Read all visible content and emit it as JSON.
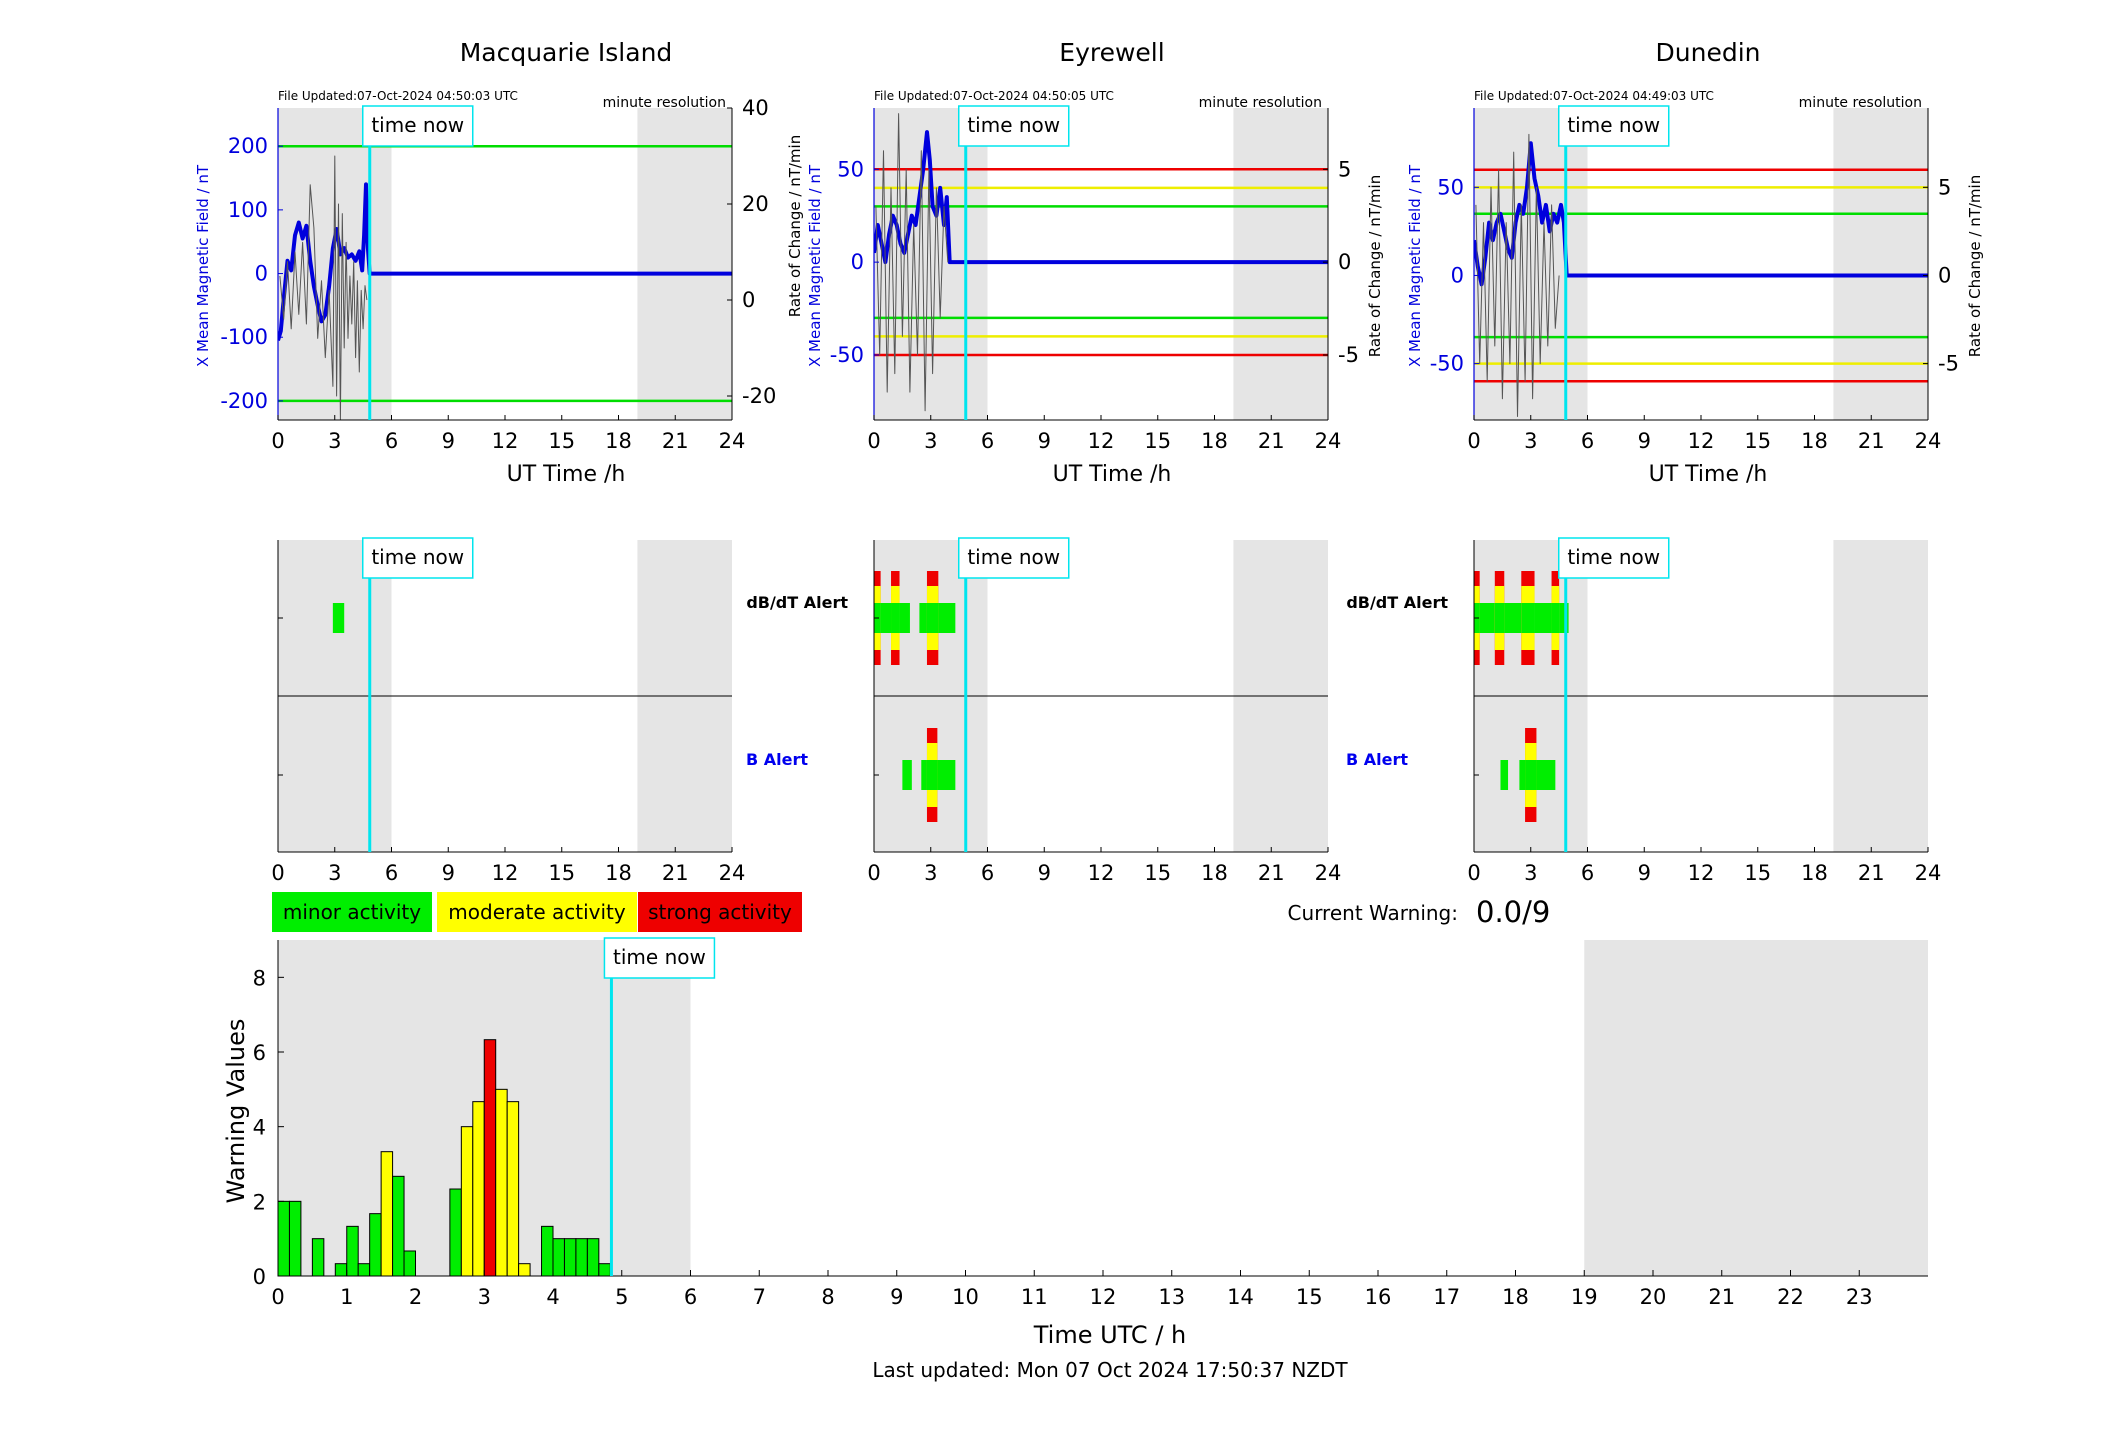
{
  "chart_data": [
    {
      "type": "line",
      "title": "Macquarie Island",
      "file_updated": "File Updated:07-Oct-2024 04:50:03 UTC",
      "resolution_label": "minute resolution",
      "xlabel": "UT Time /h",
      "ylabel": "X Mean Magnetic Field / nT",
      "y2label": "Rate of Change / nT/min",
      "xlim": [
        0,
        24
      ],
      "ylim": [
        -230,
        260
      ],
      "y2lim": [
        -25,
        40
      ],
      "xticks": [
        0,
        3,
        6,
        9,
        12,
        15,
        18,
        21,
        24
      ],
      "yticks": [
        -200,
        -100,
        0,
        100,
        200
      ],
      "y2ticks": [
        -20,
        0,
        20,
        40
      ],
      "time_now": 4.85,
      "time_now_label": "time now",
      "shaded_ranges": [
        [
          0,
          6
        ],
        [
          19,
          24
        ]
      ],
      "threshold_lines": [
        {
          "y": 200,
          "color": "#00dd00"
        },
        {
          "y": -200,
          "color": "#00dd00"
        }
      ],
      "series": [
        {
          "role": "field",
          "color": "#0000dd",
          "x": [
            0,
            0.15,
            0.3,
            0.5,
            0.7,
            0.9,
            1.1,
            1.3,
            1.5,
            1.7,
            1.9,
            2.1,
            2.3,
            2.5,
            2.7,
            2.9,
            3.1,
            3.3,
            3.5,
            3.7,
            3.9,
            4.1,
            4.3,
            4.45,
            4.55,
            4.65,
            4.75,
            4.85,
            24
          ],
          "y": [
            -105,
            -90,
            -40,
            20,
            5,
            60,
            80,
            55,
            75,
            20,
            -20,
            -50,
            -75,
            -65,
            -20,
            40,
            70,
            30,
            40,
            25,
            30,
            20,
            35,
            5,
            60,
            140,
            40,
            0,
            0
          ]
        },
        {
          "role": "rate",
          "color": "#555555",
          "x": [
            0.1,
            0.3,
            0.5,
            0.7,
            0.9,
            1.1,
            1.3,
            1.5,
            1.7,
            1.9,
            2.1,
            2.3,
            2.5,
            2.7,
            2.9,
            3.0,
            3.1,
            3.2,
            3.3,
            3.4,
            3.5,
            3.6,
            3.7,
            3.8,
            3.9,
            4.0,
            4.1,
            4.2,
            4.3,
            4.4,
            4.5,
            4.6,
            4.7
          ],
          "y": [
            5,
            -4,
            8,
            -6,
            10,
            -3,
            12,
            -5,
            24,
            15,
            -8,
            4,
            -12,
            2,
            -18,
            30,
            -20,
            20,
            -25,
            18,
            -10,
            12,
            -8,
            5,
            -5,
            8,
            -12,
            4,
            -15,
            2,
            -6,
            3,
            0
          ]
        }
      ]
    },
    {
      "type": "line",
      "title": "Eyrewell",
      "file_updated": "File Updated:07-Oct-2024 04:50:05 UTC",
      "resolution_label": "minute resolution",
      "xlabel": "UT Time /h",
      "ylabel": "X Mean Magnetic Field / nT",
      "y2label": "Rate of Change / nT/min",
      "xlim": [
        0,
        24
      ],
      "ylim": [
        -85,
        83
      ],
      "y2lim": [
        -8.5,
        8.3
      ],
      "xticks": [
        0,
        3,
        6,
        9,
        12,
        15,
        18,
        21,
        24
      ],
      "yticks": [
        -50,
        0,
        50
      ],
      "y2ticks": [
        -5,
        0,
        5
      ],
      "time_now": 4.85,
      "time_now_label": "time now",
      "shaded_ranges": [
        [
          0,
          6
        ],
        [
          19,
          24
        ]
      ],
      "threshold_lines": [
        {
          "y": 50,
          "color": "#ee0000"
        },
        {
          "y": 40,
          "color": "#eeee00"
        },
        {
          "y": 30,
          "color": "#00dd00"
        },
        {
          "y": -30,
          "color": "#00dd00"
        },
        {
          "y": -40,
          "color": "#eeee00"
        },
        {
          "y": -50,
          "color": "#ee0000"
        }
      ],
      "series": [
        {
          "role": "field",
          "color": "#0000dd",
          "x": [
            0,
            0.2,
            0.4,
            0.6,
            0.8,
            1.0,
            1.2,
            1.4,
            1.6,
            1.8,
            2.0,
            2.2,
            2.4,
            2.6,
            2.8,
            2.95,
            3.1,
            3.3,
            3.5,
            3.7,
            3.85,
            4.0,
            24
          ],
          "y": [
            5,
            20,
            10,
            0,
            15,
            25,
            20,
            10,
            5,
            15,
            25,
            20,
            35,
            50,
            70,
            55,
            30,
            25,
            40,
            20,
            35,
            0,
            0
          ]
        },
        {
          "role": "rate",
          "color": "#555555",
          "x": [
            0.1,
            0.3,
            0.5,
            0.7,
            0.9,
            1.1,
            1.3,
            1.5,
            1.7,
            1.9,
            2.1,
            2.3,
            2.5,
            2.7,
            2.9,
            3.1,
            3.3,
            3.5,
            3.7,
            3.9
          ],
          "y": [
            3,
            -5,
            6,
            -7,
            4,
            -6,
            8,
            -4,
            5,
            -7,
            2,
            -5,
            6,
            -8,
            5,
            -6,
            4,
            -3,
            3,
            0
          ]
        }
      ]
    },
    {
      "type": "line",
      "title": "Dunedin",
      "file_updated": "File Updated:07-Oct-2024 04:49:03 UTC",
      "resolution_label": "minute resolution",
      "xlabel": "UT Time /h",
      "ylabel": "X Mean Magnetic Field / nT",
      "y2label": "Rate of Change / nT/min",
      "xlim": [
        0,
        24
      ],
      "ylim": [
        -82,
        95
      ],
      "y2lim": [
        -8.2,
        9.5
      ],
      "xticks": [
        0,
        3,
        6,
        9,
        12,
        15,
        18,
        21,
        24
      ],
      "yticks": [
        -50,
        0,
        50
      ],
      "y2ticks": [
        -5,
        0,
        5
      ],
      "time_now": 4.85,
      "time_now_label": "time now",
      "shaded_ranges": [
        [
          0,
          6
        ],
        [
          19,
          24
        ]
      ],
      "threshold_lines": [
        {
          "y": 60,
          "color": "#ee0000"
        },
        {
          "y": 50,
          "color": "#eeee00"
        },
        {
          "y": 35,
          "color": "#00dd00"
        },
        {
          "y": -35,
          "color": "#00dd00"
        },
        {
          "y": -50,
          "color": "#eeee00"
        },
        {
          "y": -60,
          "color": "#ee0000"
        }
      ],
      "series": [
        {
          "role": "field",
          "color": "#0000dd",
          "x": [
            0,
            0.2,
            0.4,
            0.6,
            0.8,
            1.0,
            1.2,
            1.4,
            1.6,
            1.8,
            2.0,
            2.2,
            2.4,
            2.6,
            2.8,
            3.0,
            3.2,
            3.4,
            3.6,
            3.8,
            4.0,
            4.2,
            4.4,
            4.6,
            4.75,
            4.9,
            24
          ],
          "y": [
            20,
            5,
            -5,
            10,
            30,
            20,
            30,
            35,
            25,
            15,
            10,
            30,
            40,
            35,
            50,
            75,
            55,
            45,
            30,
            40,
            25,
            35,
            30,
            40,
            30,
            0,
            0
          ]
        },
        {
          "role": "rate",
          "color": "#555555",
          "x": [
            0.1,
            0.3,
            0.5,
            0.7,
            0.9,
            1.1,
            1.3,
            1.5,
            1.7,
            1.9,
            2.1,
            2.3,
            2.5,
            2.7,
            2.9,
            3.1,
            3.3,
            3.5,
            3.7,
            3.9,
            4.1,
            4.3,
            4.5
          ],
          "y": [
            4,
            -5,
            3,
            -6,
            5,
            -4,
            6,
            -7,
            3,
            -5,
            7,
            -8,
            4,
            -6,
            8,
            -7,
            5,
            -5,
            3,
            -4,
            4,
            -3,
            0
          ]
        }
      ]
    },
    {
      "type": "heatmap",
      "title": "Macquarie Island alerts",
      "row_labels": [
        "dB/dT Alert",
        "B Alert"
      ],
      "xlim": [
        0,
        24
      ],
      "xticks": [
        0,
        3,
        6,
        9,
        12,
        15,
        18,
        21,
        24
      ],
      "time_now": 4.85,
      "time_now_label": "time now",
      "shaded_ranges": [
        [
          0,
          6
        ],
        [
          19,
          24
        ]
      ],
      "dbdt_blocks": [
        {
          "x0": 2.9,
          "x1": 3.5,
          "level": 1
        }
      ],
      "b_blocks": []
    },
    {
      "type": "heatmap",
      "title": "Eyrewell alerts",
      "row_labels": [
        "dB/dT Alert",
        "B Alert"
      ],
      "xlim": [
        0,
        24
      ],
      "xticks": [
        0,
        3,
        6,
        9,
        12,
        15,
        18,
        21,
        24
      ],
      "time_now": 4.85,
      "time_now_label": "time now",
      "shaded_ranges": [
        [
          0,
          6
        ],
        [
          19,
          24
        ]
      ],
      "dbdt_blocks": [
        {
          "x0": 0.0,
          "x1": 0.35,
          "level": 3
        },
        {
          "x0": 0.35,
          "x1": 0.9,
          "level": 1
        },
        {
          "x0": 0.9,
          "x1": 1.35,
          "level": 3
        },
        {
          "x0": 1.35,
          "x1": 1.9,
          "level": 1
        },
        {
          "x0": 2.4,
          "x1": 2.8,
          "level": 1
        },
        {
          "x0": 2.8,
          "x1": 3.4,
          "level": 3
        },
        {
          "x0": 3.4,
          "x1": 4.3,
          "level": 1
        }
      ],
      "b_blocks": [
        {
          "x0": 1.5,
          "x1": 2.0,
          "level": 1
        },
        {
          "x0": 2.5,
          "x1": 2.8,
          "level": 1
        },
        {
          "x0": 2.8,
          "x1": 3.35,
          "level": 3
        },
        {
          "x0": 3.35,
          "x1": 4.3,
          "level": 1
        }
      ]
    },
    {
      "type": "heatmap",
      "title": "Dunedin alerts",
      "row_labels": [
        "dB/dT Alert",
        "B Alert"
      ],
      "xlim": [
        0,
        24
      ],
      "xticks": [
        0,
        3,
        6,
        9,
        12,
        15,
        18,
        21,
        24
      ],
      "time_now": 4.85,
      "time_now_label": "time now",
      "shaded_ranges": [
        [
          0,
          6
        ],
        [
          19,
          24
        ]
      ],
      "dbdt_blocks": [
        {
          "x0": 0.0,
          "x1": 0.3,
          "level": 3
        },
        {
          "x0": 0.3,
          "x1": 1.1,
          "level": 1
        },
        {
          "x0": 1.1,
          "x1": 1.6,
          "level": 3
        },
        {
          "x0": 1.6,
          "x1": 2.5,
          "level": 1
        },
        {
          "x0": 2.5,
          "x1": 3.2,
          "level": 3
        },
        {
          "x0": 3.2,
          "x1": 4.1,
          "level": 1
        },
        {
          "x0": 4.1,
          "x1": 4.5,
          "level": 3
        },
        {
          "x0": 4.5,
          "x1": 5.0,
          "level": 1
        }
      ],
      "b_blocks": [
        {
          "x0": 1.4,
          "x1": 1.8,
          "level": 1
        },
        {
          "x0": 2.4,
          "x1": 2.7,
          "level": 1
        },
        {
          "x0": 2.7,
          "x1": 3.3,
          "level": 3
        },
        {
          "x0": 3.3,
          "x1": 4.3,
          "level": 1
        }
      ]
    },
    {
      "type": "bar",
      "title": "",
      "xlabel": "Time UTC / h",
      "ylabel": "Warning Values",
      "xlim": [
        0,
        24
      ],
      "ylim": [
        0,
        9
      ],
      "xticks": [
        0,
        1,
        2,
        3,
        4,
        5,
        6,
        7,
        8,
        9,
        10,
        11,
        12,
        13,
        14,
        15,
        16,
        17,
        18,
        19,
        20,
        21,
        22,
        23
      ],
      "yticks": [
        0,
        2,
        4,
        6,
        8
      ],
      "time_now": 4.85,
      "time_now_label": "time now",
      "shaded_ranges": [
        [
          0,
          6
        ],
        [
          19,
          24
        ]
      ],
      "bar_width_h": 0.1667,
      "x": [
        0.0833,
        0.25,
        0.5833,
        0.9167,
        1.0833,
        1.25,
        1.4167,
        1.5833,
        1.75,
        1.9167,
        2.5833,
        2.75,
        2.9167,
        3.0833,
        3.25,
        3.4167,
        3.5833,
        3.9167,
        4.0833,
        4.25,
        4.4167,
        4.5833,
        4.75
      ],
      "values": [
        2,
        2,
        1,
        0.33,
        1.33,
        0.33,
        1.67,
        3.33,
        2.67,
        0.67,
        2.33,
        4,
        4.67,
        6.33,
        5,
        4.67,
        0.33,
        1.33,
        1,
        1,
        1,
        1,
        0.33
      ],
      "levels": [
        1,
        1,
        1,
        1,
        1,
        1,
        1,
        2,
        1,
        1,
        1,
        2,
        2,
        3,
        2,
        2,
        2,
        1,
        1,
        1,
        1,
        1,
        1
      ]
    }
  ],
  "legend": {
    "minor": "minor activity",
    "moderate": "moderate activity",
    "strong": "strong activity"
  },
  "colors": {
    "minor": "#00ee00",
    "moderate": "#ffff00",
    "strong": "#ee0000",
    "time_now": "#00e5ee",
    "shade": "#e5e5e5",
    "field": "#0000dd",
    "rate": "#555555"
  },
  "current_warning": {
    "label": "Current Warning:",
    "value": "0.0/9"
  },
  "footer": {
    "last_updated": "Last updated: Mon 07 Oct 2024 17:50:37 NZDT"
  }
}
